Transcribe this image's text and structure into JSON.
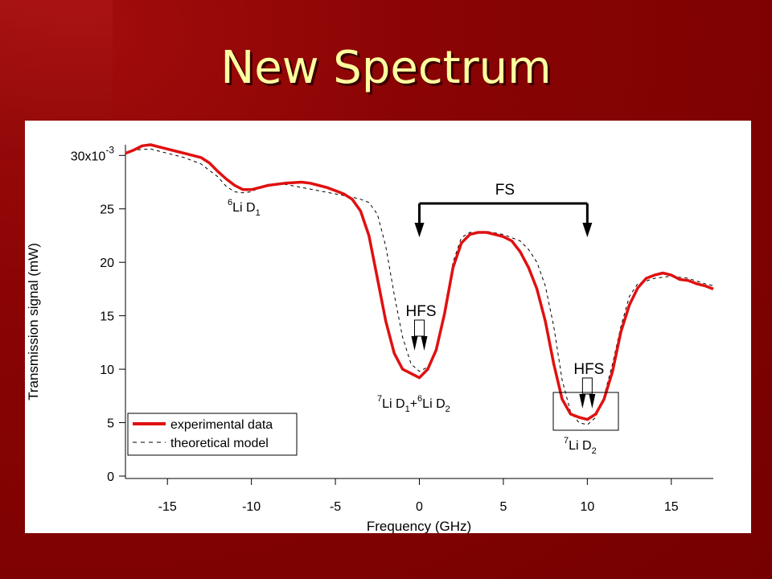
{
  "slide": {
    "title": "New Spectrum"
  },
  "colors": {
    "background": "#7a0000",
    "title": "#ffffa0",
    "experimental": "#e01010",
    "model": "#000000"
  },
  "chart_data": {
    "type": "line",
    "xlabel": "Frequency (GHz)",
    "ylabel": "Transmission signal (mW)",
    "xlim": [
      -17.5,
      17.5
    ],
    "ylim": [
      0,
      0.031
    ],
    "xticks": [
      -15,
      -10,
      -5,
      0,
      5,
      10,
      15
    ],
    "xtick_labels": [
      "-15",
      "-10",
      "-5",
      "0",
      "5",
      "10",
      "15"
    ],
    "yticks": [
      0,
      0.005,
      0.01,
      0.015,
      0.02,
      0.025,
      0.03
    ],
    "ytick_labels": [
      "0",
      "5",
      "10",
      "15",
      "20",
      "25",
      "30x10-3"
    ],
    "legend": {
      "position": "bottom-left",
      "entries": [
        {
          "label": "experimental data",
          "style": "solid-red"
        },
        {
          "label": "theoretical model",
          "style": "dashed-black"
        }
      ]
    },
    "series": [
      {
        "name": "experimental data",
        "x": [
          -17.5,
          -17,
          -16.5,
          -16,
          -15.5,
          -15,
          -14.5,
          -14,
          -13,
          -12.5,
          -12,
          -11.5,
          -11,
          -10.5,
          -10,
          -9.5,
          -9,
          -8,
          -7,
          -6.5,
          -6,
          -5.5,
          -5,
          -4.5,
          -4,
          -3.5,
          -3,
          -2.5,
          -2,
          -1.5,
          -1,
          -0.5,
          0,
          0.5,
          1,
          1.5,
          2,
          2.5,
          3,
          3.5,
          4,
          4.5,
          5,
          5.5,
          6,
          6.5,
          7,
          7.5,
          8,
          8.5,
          9,
          9.5,
          10,
          10.5,
          11,
          11.5,
          12,
          12.5,
          13,
          13.5,
          14,
          14.5,
          15,
          15.5,
          16,
          16.5,
          17,
          17.5
        ],
        "y": [
          0.0302,
          0.0305,
          0.0309,
          0.031,
          0.0308,
          0.0306,
          0.0304,
          0.0302,
          0.0298,
          0.0293,
          0.0285,
          0.0278,
          0.0272,
          0.0268,
          0.0268,
          0.027,
          0.0272,
          0.0274,
          0.0275,
          0.0274,
          0.0272,
          0.027,
          0.0267,
          0.0264,
          0.0259,
          0.0248,
          0.0225,
          0.0185,
          0.0145,
          0.0115,
          0.01,
          0.0096,
          0.0092,
          0.01,
          0.0118,
          0.0152,
          0.0195,
          0.0218,
          0.0226,
          0.0228,
          0.0228,
          0.0226,
          0.0224,
          0.022,
          0.021,
          0.0195,
          0.0175,
          0.0145,
          0.0105,
          0.0072,
          0.0058,
          0.0055,
          0.0053,
          0.0058,
          0.0072,
          0.0098,
          0.0135,
          0.016,
          0.0176,
          0.0185,
          0.0188,
          0.019,
          0.0188,
          0.0184,
          0.0183,
          0.018,
          0.0178,
          0.0175
        ]
      },
      {
        "name": "theoretical model",
        "x": [
          -17.5,
          -17,
          -16,
          -15,
          -14,
          -13,
          -12,
          -11.5,
          -11,
          -10.5,
          -10,
          -9.5,
          -9,
          -8,
          -7,
          -6,
          -5,
          -4,
          -3.5,
          -3,
          -2.5,
          -2,
          -1.5,
          -1,
          -0.5,
          0,
          0.5,
          1,
          1.5,
          2,
          2.5,
          3,
          4,
          5,
          6,
          6.5,
          7,
          7.5,
          8,
          8.5,
          9,
          9.5,
          10,
          10.5,
          11,
          11.5,
          12,
          12.5,
          13,
          14,
          15,
          16,
          17,
          17.5
        ],
        "y": [
          0.0302,
          0.0305,
          0.0306,
          0.0302,
          0.0298,
          0.0292,
          0.028,
          0.0271,
          0.0266,
          0.0265,
          0.0266,
          0.027,
          0.0273,
          0.0273,
          0.027,
          0.0267,
          0.0264,
          0.0261,
          0.0259,
          0.0256,
          0.0245,
          0.0215,
          0.017,
          0.013,
          0.0105,
          0.0098,
          0.0102,
          0.0118,
          0.015,
          0.02,
          0.0223,
          0.0228,
          0.0229,
          0.0226,
          0.022,
          0.0212,
          0.02,
          0.0178,
          0.014,
          0.009,
          0.006,
          0.005,
          0.0048,
          0.0055,
          0.0075,
          0.0105,
          0.014,
          0.0168,
          0.018,
          0.0185,
          0.0187,
          0.0185,
          0.018,
          0.0178
        ]
      }
    ],
    "annotations": {
      "li6_d1": {
        "sup": "6",
        "text": "Li D",
        "sub": "1"
      },
      "fs": {
        "text": "FS",
        "from_x": 0,
        "to_x": 10
      },
      "hfs_left": {
        "text": "HFS",
        "x": 0
      },
      "hfs_right": {
        "text": "HFS",
        "x": 10
      },
      "center_line": {
        "sup1": "7",
        "part1": "Li D",
        "sub1": "1",
        "plus": "+",
        "sup2": "6",
        "part2": "Li D",
        "sub2": "2"
      },
      "li7_d2": {
        "sup": "7",
        "text": "Li D",
        "sub": "2"
      }
    }
  }
}
